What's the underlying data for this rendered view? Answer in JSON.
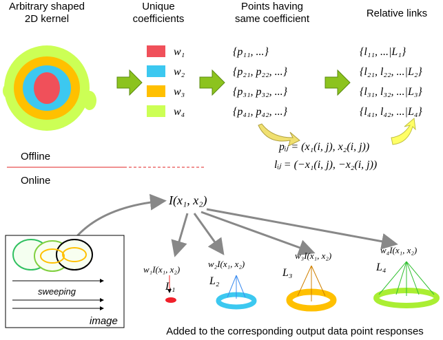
{
  "header": {
    "kernel": [
      "Arbitrary shaped",
      "2D kernel"
    ],
    "coefficients": [
      "Unique",
      "coefficients"
    ],
    "points": [
      "Points having",
      "same coefficient"
    ],
    "links": "Relative links"
  },
  "coefficients": [
    {
      "label": "w₁",
      "color": "#f0505a"
    },
    {
      "label": "w₂",
      "color": "#3cc8f0"
    },
    {
      "label": "w₃",
      "color": "#ffc000"
    },
    {
      "label": "w₄",
      "color": "#ccff55"
    }
  ],
  "points": [
    "{p₁₁, ...}",
    "{p₂₁, p₂₂, ...}",
    "{p₃₁, p₃₂, ...}",
    "{p₄₁, p₄₂, ...}"
  ],
  "links": [
    "{l₁₁, ...|L₁}",
    "{l₂₁, l₂₂, ...|L₂}",
    "{l₃₁, l₃₂, ...|L₃}",
    "{l₄₁, l₄₂, ...|L₄}"
  ],
  "formulas": [
    "pᵢⱼ = (x₁(i, j), x₂(i, j))",
    "lᵢⱼ = (−x₁(i, j), −x₂(i, j))"
  ],
  "offline": "Offline",
  "online": "Online",
  "intensity": "I(x₁, x₂)",
  "responses": [
    {
      "label": "w₁I(x₁, x₂)",
      "link": "L₁"
    },
    {
      "label": "w₂I(x₁, x₂)",
      "link": "L₂"
    },
    {
      "label": "w₃I(x₁, x₂)",
      "link": "L₃"
    },
    {
      "label": "w₄I(x₁, x₂)",
      "link": "L₄"
    }
  ],
  "sweeping": "sweeping",
  "image": "image",
  "caption": "Added to the corresponding output data point responses"
}
